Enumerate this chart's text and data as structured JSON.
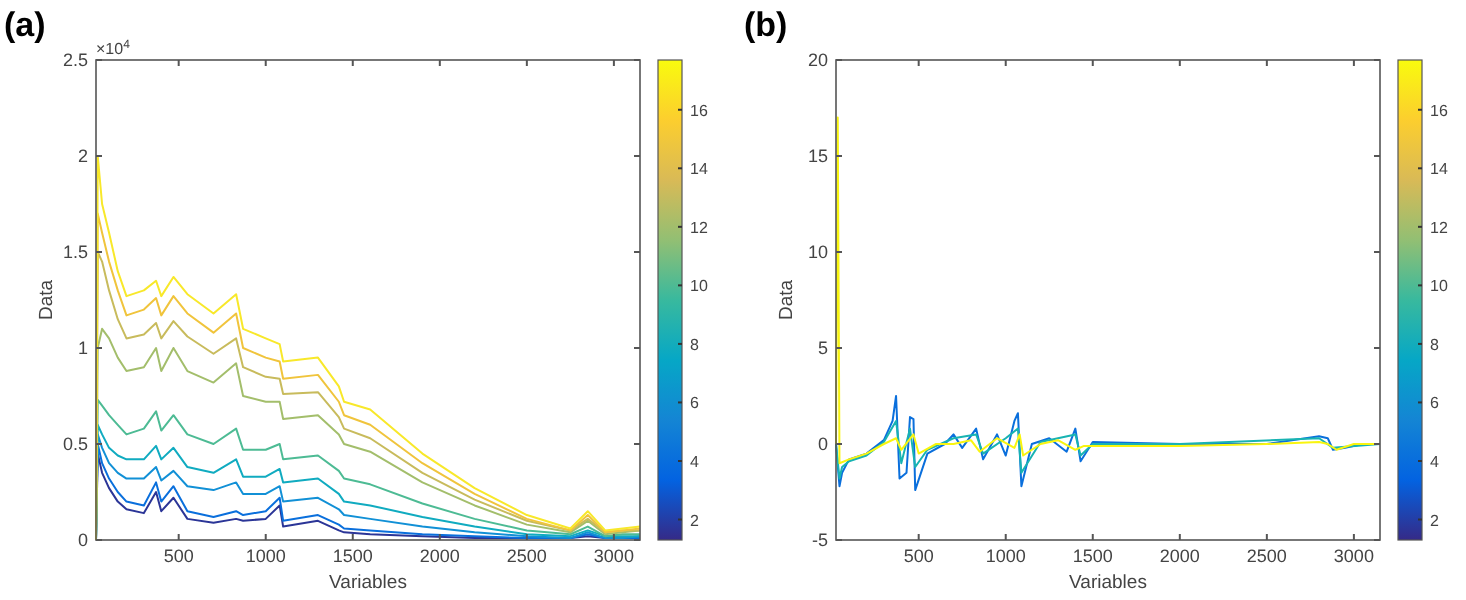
{
  "chart_data": [
    {
      "type": "line",
      "title": "(a)",
      "xlabel": "Variables",
      "ylabel": "Data",
      "annotations": [
        "×10$^{4}$"
      ],
      "xlim": [
        25,
        3150
      ],
      "xticks": [
        500,
        1000,
        1500,
        2000,
        2500,
        3000
      ],
      "ylim": [
        0,
        2.5
      ],
      "yticks": [
        0,
        0.5,
        1,
        1.5,
        2,
        2.5
      ],
      "clim": [
        1.3,
        17.7
      ],
      "cticks": [
        2,
        4,
        6,
        8,
        10,
        12,
        14,
        16
      ],
      "x": [
        25,
        35,
        60,
        100,
        150,
        200,
        300,
        370,
        400,
        470,
        550,
        700,
        830,
        870,
        1000,
        1080,
        1100,
        1300,
        1420,
        1450,
        1600,
        1900,
        2200,
        2500,
        2750,
        2850,
        2950,
        3050,
        3150
      ],
      "series": [
        {
          "color": "#2b3597",
          "values": [
            0,
            0.45,
            0.35,
            0.27,
            0.2,
            0.16,
            0.14,
            0.25,
            0.15,
            0.22,
            0.11,
            0.09,
            0.11,
            0.1,
            0.11,
            0.18,
            0.07,
            0.1,
            0.05,
            0.04,
            0.03,
            0.02,
            0.01,
            0.01,
            0.01,
            0.02,
            0.01,
            0.01,
            0.01
          ]
        },
        {
          "color": "#0a6fdc",
          "values": [
            0,
            0.5,
            0.4,
            0.32,
            0.25,
            0.2,
            0.18,
            0.3,
            0.2,
            0.28,
            0.15,
            0.12,
            0.15,
            0.13,
            0.15,
            0.22,
            0.1,
            0.13,
            0.08,
            0.06,
            0.05,
            0.03,
            0.02,
            0.01,
            0.01,
            0.03,
            0.01,
            0.01,
            0.01
          ]
        },
        {
          "color": "#1190d6",
          "values": [
            0,
            0.55,
            0.48,
            0.4,
            0.35,
            0.32,
            0.32,
            0.38,
            0.31,
            0.36,
            0.28,
            0.26,
            0.3,
            0.24,
            0.24,
            0.28,
            0.2,
            0.22,
            0.16,
            0.13,
            0.11,
            0.07,
            0.04,
            0.02,
            0.01,
            0.04,
            0.01,
            0.01,
            0.02
          ]
        },
        {
          "color": "#10abc0",
          "values": [
            0,
            0.6,
            0.55,
            0.48,
            0.44,
            0.42,
            0.42,
            0.49,
            0.42,
            0.48,
            0.38,
            0.35,
            0.42,
            0.33,
            0.33,
            0.37,
            0.3,
            0.32,
            0.24,
            0.2,
            0.18,
            0.12,
            0.07,
            0.03,
            0.02,
            0.05,
            0.02,
            0.02,
            0.02
          ]
        },
        {
          "color": "#4dbb94",
          "values": [
            0,
            0.73,
            0.7,
            0.65,
            0.6,
            0.55,
            0.58,
            0.67,
            0.57,
            0.65,
            0.55,
            0.5,
            0.58,
            0.47,
            0.47,
            0.5,
            0.42,
            0.44,
            0.36,
            0.32,
            0.29,
            0.19,
            0.11,
            0.05,
            0.03,
            0.07,
            0.02,
            0.03,
            0.03
          ]
        },
        {
          "color": "#a3be6b",
          "values": [
            0,
            1.0,
            1.1,
            1.05,
            0.95,
            0.88,
            0.9,
            1.0,
            0.88,
            1.0,
            0.88,
            0.82,
            0.92,
            0.75,
            0.72,
            0.72,
            0.63,
            0.65,
            0.55,
            0.5,
            0.46,
            0.3,
            0.18,
            0.08,
            0.04,
            0.1,
            0.03,
            0.04,
            0.05
          ]
        },
        {
          "color": "#c8bb5c",
          "values": [
            0,
            1.5,
            1.45,
            1.3,
            1.15,
            1.05,
            1.07,
            1.13,
            1.05,
            1.14,
            1.06,
            0.97,
            1.05,
            0.9,
            0.85,
            0.84,
            0.76,
            0.77,
            0.64,
            0.58,
            0.53,
            0.35,
            0.21,
            0.1,
            0.05,
            0.11,
            0.04,
            0.05,
            0.05
          ]
        },
        {
          "color": "#f0c43c",
          "values": [
            0,
            1.7,
            1.6,
            1.45,
            1.3,
            1.17,
            1.2,
            1.26,
            1.17,
            1.27,
            1.18,
            1.08,
            1.18,
            1.0,
            0.95,
            0.93,
            0.84,
            0.86,
            0.72,
            0.65,
            0.6,
            0.4,
            0.24,
            0.11,
            0.05,
            0.13,
            0.04,
            0.05,
            0.06
          ]
        },
        {
          "color": "#f8e82a",
          "values": [
            0,
            2.0,
            1.75,
            1.6,
            1.4,
            1.27,
            1.3,
            1.35,
            1.27,
            1.37,
            1.28,
            1.18,
            1.28,
            1.1,
            1.05,
            1.02,
            0.93,
            0.95,
            0.8,
            0.72,
            0.68,
            0.45,
            0.27,
            0.13,
            0.06,
            0.15,
            0.05,
            0.06,
            0.07
          ]
        }
      ]
    },
    {
      "type": "line",
      "title": "(b)",
      "xlabel": "Variables",
      "ylabel": "Data",
      "xlim": [
        25,
        3150
      ],
      "xticks": [
        500,
        1000,
        1500,
        2000,
        2500,
        3000
      ],
      "ylim": [
        -5,
        20
      ],
      "yticks": [
        -5,
        0,
        5,
        10,
        15,
        20
      ],
      "clim": [
        1.3,
        17.7
      ],
      "cticks": [
        2,
        4,
        6,
        8,
        10,
        12,
        14,
        16
      ],
      "series": [
        {
          "color": "#0a6fdc",
          "x": [
            25,
            45,
            60,
            100,
            200,
            300,
            350,
            370,
            390,
            430,
            450,
            470,
            480,
            550,
            650,
            700,
            750,
            830,
            870,
            950,
            1000,
            1050,
            1070,
            1090,
            1150,
            1250,
            1350,
            1400,
            1430,
            1500,
            2000,
            2500,
            2800,
            2850,
            2880,
            2950,
            3050,
            3150
          ],
          "values": [
            0,
            -2.2,
            -1.5,
            -0.8,
            -0.5,
            0.2,
            1.2,
            2.5,
            -1.8,
            -1.5,
            1.4,
            1.3,
            -2.4,
            -0.5,
            0,
            0.5,
            -0.2,
            0.8,
            -0.8,
            0.5,
            -0.6,
            1.2,
            1.6,
            -2.2,
            0,
            0.3,
            -0.4,
            0.8,
            -0.9,
            0.1,
            0,
            0,
            0.4,
            0.3,
            -0.3,
            -0.2,
            0,
            0
          ]
        },
        {
          "color": "#18b3b2",
          "x": [
            25,
            45,
            60,
            100,
            200,
            300,
            370,
            400,
            450,
            480,
            550,
            700,
            830,
            870,
            1000,
            1070,
            1090,
            1200,
            1400,
            1430,
            1500,
            2000,
            2800,
            2880,
            3150
          ],
          "values": [
            0,
            -1.8,
            -1.2,
            -0.9,
            -0.6,
            0.1,
            1.2,
            -1.0,
            0.8,
            -1.2,
            -0.3,
            0.3,
            0.5,
            -0.5,
            0.3,
            0.8,
            -1.5,
            0.1,
            0.5,
            -0.6,
            0,
            0,
            0.3,
            -0.2,
            0
          ]
        },
        {
          "color": "#f9f50f",
          "x": [
            25,
            35,
            45,
            100,
            200,
            300,
            370,
            400,
            470,
            500,
            600,
            700,
            800,
            850,
            950,
            1050,
            1080,
            1100,
            1200,
            1300,
            1400,
            1450,
            1600,
            2000,
            2500,
            2800,
            2850,
            2900,
            3000,
            3150
          ],
          "values": [
            0,
            17,
            -1,
            -0.8,
            -0.5,
            0,
            0.3,
            -0.3,
            0.5,
            -0.5,
            0,
            0,
            0.2,
            -0.4,
            0.3,
            -0.2,
            0.5,
            -0.6,
            0,
            0.2,
            -0.3,
            -0.1,
            -0.1,
            -0.1,
            0,
            0.1,
            0,
            -0.3,
            0,
            0
          ]
        }
      ]
    }
  ]
}
